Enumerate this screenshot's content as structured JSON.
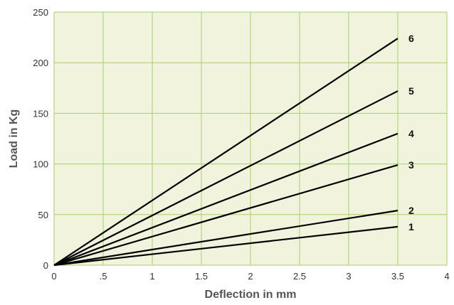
{
  "chart_data": {
    "type": "line",
    "title": "",
    "xlabel": "Deflection in mm",
    "ylabel": "Load in Kg",
    "xlim": [
      0,
      4
    ],
    "ylim": [
      0,
      250
    ],
    "x_ticks": [
      "0",
      ".5",
      "1",
      "1.5",
      "2",
      "2.5",
      "3",
      "3.5",
      "4"
    ],
    "y_ticks": [
      "0",
      "50",
      "100",
      "150",
      "200",
      "250"
    ],
    "grid": true,
    "legend": "none",
    "series": [
      {
        "name": "1",
        "x": [
          0,
          3.5
        ],
        "y": [
          0,
          38
        ]
      },
      {
        "name": "2",
        "x": [
          0,
          3.5
        ],
        "y": [
          0,
          54
        ]
      },
      {
        "name": "3",
        "x": [
          0,
          3.5
        ],
        "y": [
          0,
          99
        ]
      },
      {
        "name": "4",
        "x": [
          0,
          3.5
        ],
        "y": [
          0,
          130
        ]
      },
      {
        "name": "5",
        "x": [
          0,
          3.5
        ],
        "y": [
          0,
          172
        ]
      },
      {
        "name": "6",
        "x": [
          0,
          3.5
        ],
        "y": [
          0,
          224
        ]
      }
    ],
    "colors": {
      "plot_background": "#f1f3dc",
      "grid": "#a6d06a",
      "lines": "#000000",
      "axis_text": "#555555"
    }
  }
}
